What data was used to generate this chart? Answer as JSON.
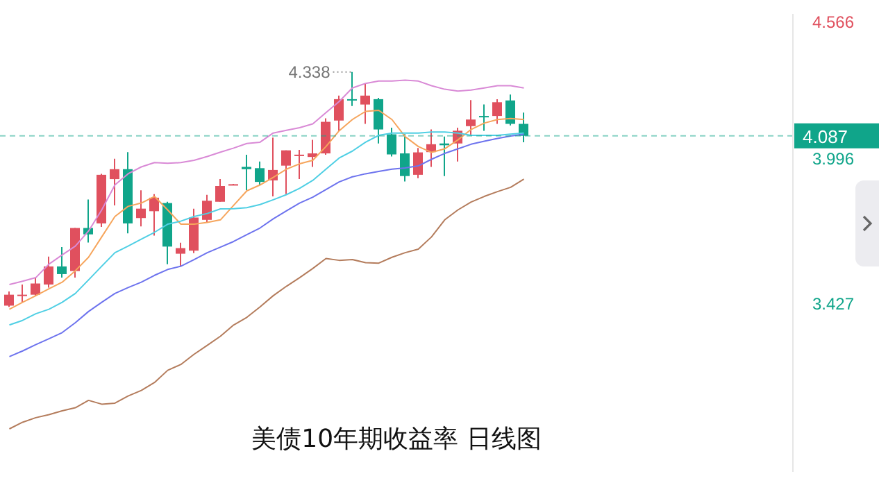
{
  "chart_data": {
    "type": "candlestick",
    "title": "美债10年期收益率  日线图",
    "categories": [
      null,
      null,
      null,
      null,
      null,
      null,
      null,
      null,
      null,
      null,
      null,
      null,
      null,
      null,
      null,
      null,
      null,
      null,
      null,
      null,
      null,
      null,
      null,
      null,
      null,
      null,
      null,
      null,
      null,
      null,
      null,
      null,
      null,
      null,
      null,
      null,
      null,
      null,
      null,
      null
    ],
    "ohlc": [
      [
        3.42,
        3.476,
        3.415,
        3.463
      ],
      [
        3.462,
        3.503,
        3.432,
        3.463
      ],
      [
        3.463,
        3.528,
        3.459,
        3.507
      ],
      [
        3.503,
        3.613,
        3.491,
        3.574
      ],
      [
        3.574,
        3.65,
        3.53,
        3.544
      ],
      [
        3.556,
        3.725,
        3.53,
        3.725
      ],
      [
        3.725,
        3.837,
        3.668,
        3.7
      ],
      [
        3.743,
        3.938,
        3.729,
        3.934
      ],
      [
        3.917,
        3.997,
        3.814,
        3.956
      ],
      [
        3.956,
        4.023,
        3.704,
        3.743
      ],
      [
        3.764,
        3.873,
        3.731,
        3.801
      ],
      [
        3.791,
        3.858,
        3.695,
        3.844
      ],
      [
        3.823,
        3.828,
        3.583,
        3.652
      ],
      [
        3.624,
        3.667,
        3.573,
        3.646
      ],
      [
        3.636,
        3.801,
        3.626,
        3.766
      ],
      [
        3.757,
        3.855,
        3.748,
        3.832
      ],
      [
        3.828,
        3.917,
        3.828,
        3.89
      ],
      [
        3.895,
        3.898,
        3.893,
        3.897
      ],
      [
        3.965,
        4.013,
        3.873,
        3.956
      ],
      [
        3.96,
        3.986,
        3.894,
        3.906
      ],
      [
        3.912,
        4.08,
        3.849,
        3.953
      ],
      [
        3.97,
        4.03,
        3.858,
        4.03
      ],
      [
        4.01,
        4.032,
        3.917,
        4.013
      ],
      [
        4.004,
        4.071,
        3.965,
        4.018
      ],
      [
        4.018,
        4.156,
        4.013,
        4.142
      ],
      [
        4.147,
        4.245,
        4.107,
        4.231
      ],
      [
        4.231,
        4.338,
        4.204,
        4.226
      ],
      [
        4.21,
        4.293,
        4.134,
        4.245
      ],
      [
        4.231,
        4.236,
        4.057,
        4.112
      ],
      [
        4.093,
        4.119,
        4.006,
        4.014
      ],
      [
        4.018,
        4.094,
        3.908,
        3.929
      ],
      [
        3.934,
        4.039,
        3.921,
        4.022
      ],
      [
        4.023,
        4.112,
        3.965,
        4.054
      ],
      [
        4.057,
        4.084,
        3.929,
        4.05
      ],
      [
        4.057,
        4.119,
        3.986,
        4.107
      ],
      [
        4.125,
        4.227,
        4.089,
        4.151
      ],
      [
        4.165,
        4.21,
        4.107,
        4.162
      ],
      [
        4.165,
        4.231,
        4.134,
        4.219
      ],
      [
        4.226,
        4.249,
        4.128,
        4.134
      ],
      [
        4.134,
        4.178,
        4.062,
        4.087
      ]
    ],
    "colors": [
      "#e0505e",
      "#e0505e",
      "#e0505e",
      "#e0505e",
      "#10a58a",
      "#e0505e",
      "#10a58a",
      "#e0505e",
      "#e0505e",
      "#10a58a",
      "#e0505e",
      "#e0505e",
      "#10a58a",
      "#e0505e",
      "#e0505e",
      "#e0505e",
      "#e0505e",
      "#e0505e",
      "#10a58a",
      "#10a58a",
      "#e0505e",
      "#e0505e",
      "#e0505e",
      "#e0505e",
      "#e0505e",
      "#e0505e",
      "#10a58a",
      "#e0505e",
      "#10a58a",
      "#10a58a",
      "#10a58a",
      "#e0505e",
      "#e0505e",
      "#10a58a",
      "#e0505e",
      "#e0505e",
      "#10a58a",
      "#e0505e",
      "#10a58a",
      "#10a58a"
    ],
    "series": [
      {
        "type": "line",
        "color": "#d98ad6",
        "values": [
          3.503,
          3.516,
          3.53,
          3.583,
          3.619,
          3.654,
          3.713,
          3.796,
          3.894,
          3.938,
          3.965,
          3.982,
          3.979,
          3.982,
          3.991,
          4.006,
          4.023,
          4.039,
          4.057,
          4.062,
          4.098,
          4.109,
          4.119,
          4.134,
          4.178,
          4.222,
          4.275,
          4.293,
          4.302,
          4.302,
          4.306,
          4.302,
          4.284,
          4.27,
          4.263,
          4.267,
          4.275,
          4.284,
          4.284,
          4.275
        ]
      },
      {
        "type": "line",
        "color": "#f6a55c",
        "values": [
          3.406,
          3.433,
          3.459,
          3.486,
          3.512,
          3.557,
          3.61,
          3.69,
          3.77,
          3.81,
          3.823,
          3.849,
          3.796,
          3.74,
          3.74,
          3.747,
          3.757,
          3.814,
          3.871,
          3.894,
          3.924,
          3.956,
          3.977,
          3.991,
          4.045,
          4.107,
          4.151,
          4.183,
          4.187,
          4.151,
          4.084,
          4.045,
          4.022,
          4.036,
          4.071,
          4.112,
          4.137,
          4.151,
          4.155,
          4.151
        ]
      },
      {
        "type": "line",
        "color": "#4fcfe4",
        "values": [
          3.344,
          3.362,
          3.388,
          3.406,
          3.433,
          3.468,
          3.521,
          3.575,
          3.628,
          3.654,
          3.681,
          3.708,
          3.74,
          3.752,
          3.77,
          3.782,
          3.8,
          3.801,
          3.805,
          3.817,
          3.836,
          3.856,
          3.881,
          3.912,
          3.956,
          4.0,
          4.027,
          4.062,
          4.089,
          4.098,
          4.098,
          4.098,
          4.102,
          4.102,
          4.098,
          4.089,
          4.089,
          4.089,
          4.094,
          4.098
        ]
      },
      {
        "type": "line",
        "color": "#6d73ee",
        "values": [
          3.22,
          3.242,
          3.267,
          3.29,
          3.314,
          3.353,
          3.397,
          3.433,
          3.468,
          3.491,
          3.512,
          3.539,
          3.562,
          3.575,
          3.601,
          3.628,
          3.65,
          3.672,
          3.699,
          3.725,
          3.761,
          3.792,
          3.823,
          3.846,
          3.876,
          3.906,
          3.926,
          3.938,
          3.947,
          3.956,
          3.961,
          3.969,
          3.995,
          4.018,
          4.036,
          4.054,
          4.066,
          4.077,
          4.086,
          4.093
        ]
      },
      {
        "type": "line",
        "color": "#b47c5c",
        "values": [
          2.936,
          2.962,
          2.98,
          2.992,
          3.007,
          3.019,
          3.048,
          3.033,
          3.037,
          3.065,
          3.087,
          3.118,
          3.166,
          3.189,
          3.229,
          3.264,
          3.3,
          3.344,
          3.374,
          3.415,
          3.459,
          3.496,
          3.53,
          3.566,
          3.605,
          3.598,
          3.601,
          3.589,
          3.587,
          3.61,
          3.628,
          3.642,
          3.69,
          3.757,
          3.796,
          3.827,
          3.849,
          3.868,
          3.885,
          3.917
        ]
      }
    ],
    "ylim": [
      2.767,
      4.566
    ],
    "yticks": [
      3.427,
      3.996,
      4.566
    ],
    "ref_lines": [
      {
        "axis": "y",
        "value": 4.087,
        "label": "4.087",
        "color": "#10a58a",
        "line_style": "dashed"
      }
    ],
    "annotations": [
      "4.338"
    ],
    "tick_labels": "y",
    "marker": "none"
  }
}
